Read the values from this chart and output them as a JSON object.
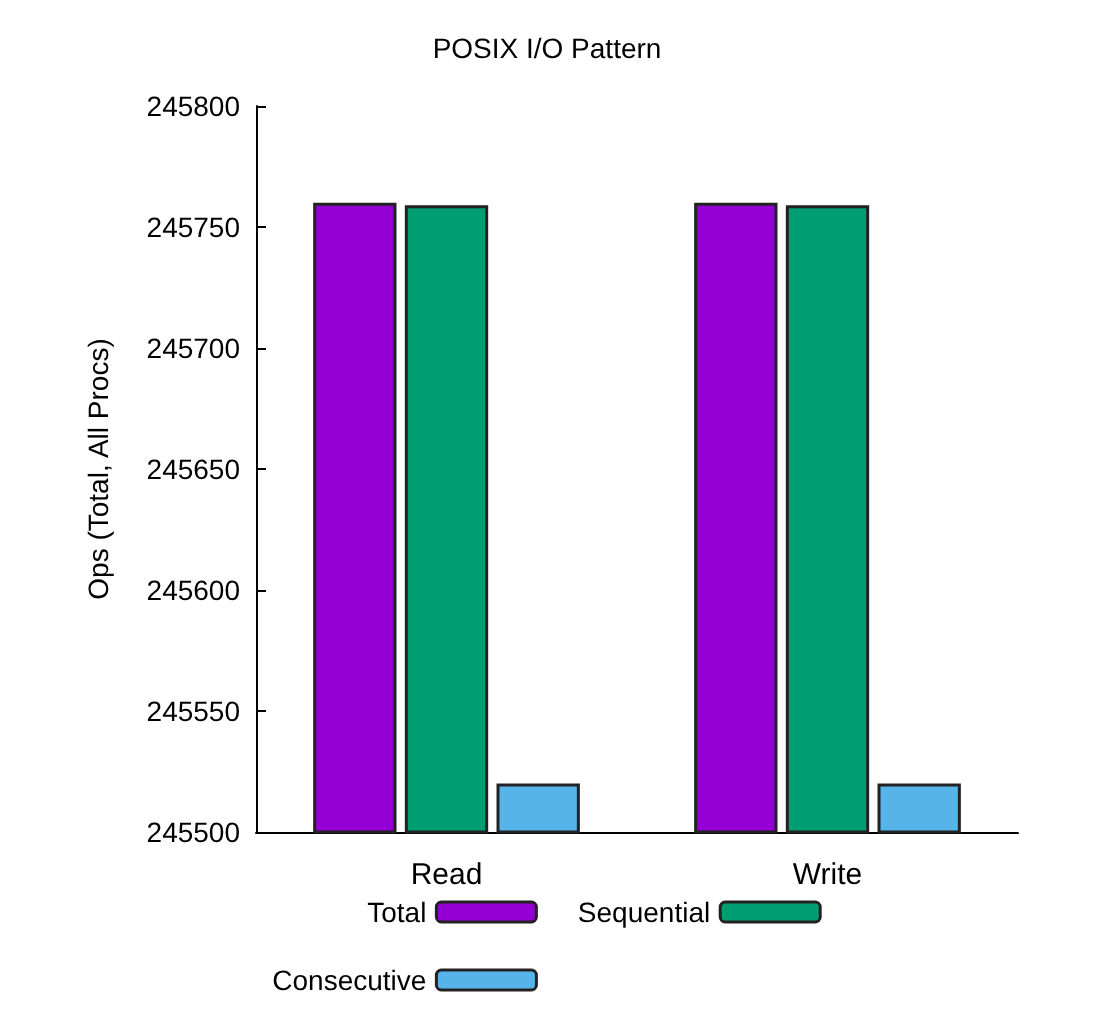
{
  "chart_data": {
    "type": "bar",
    "title": "POSIX I/O Pattern",
    "ylabel": "Ops (Total, All Procs)",
    "categories": [
      "Read",
      "Write"
    ],
    "series": [
      {
        "name": "Total",
        "color": "#9400d3",
        "values": [
          245760,
          245760
        ]
      },
      {
        "name": "Sequential",
        "color": "#009e73",
        "values": [
          245759,
          245759
        ]
      },
      {
        "name": "Consecutive",
        "color": "#56b4e9",
        "values": [
          245520,
          245520
        ]
      }
    ],
    "ylim": [
      245500,
      245800
    ],
    "yticks": [
      245500,
      245550,
      245600,
      245650,
      245700,
      245750,
      245800
    ],
    "grid": false,
    "legend": "bottom"
  }
}
